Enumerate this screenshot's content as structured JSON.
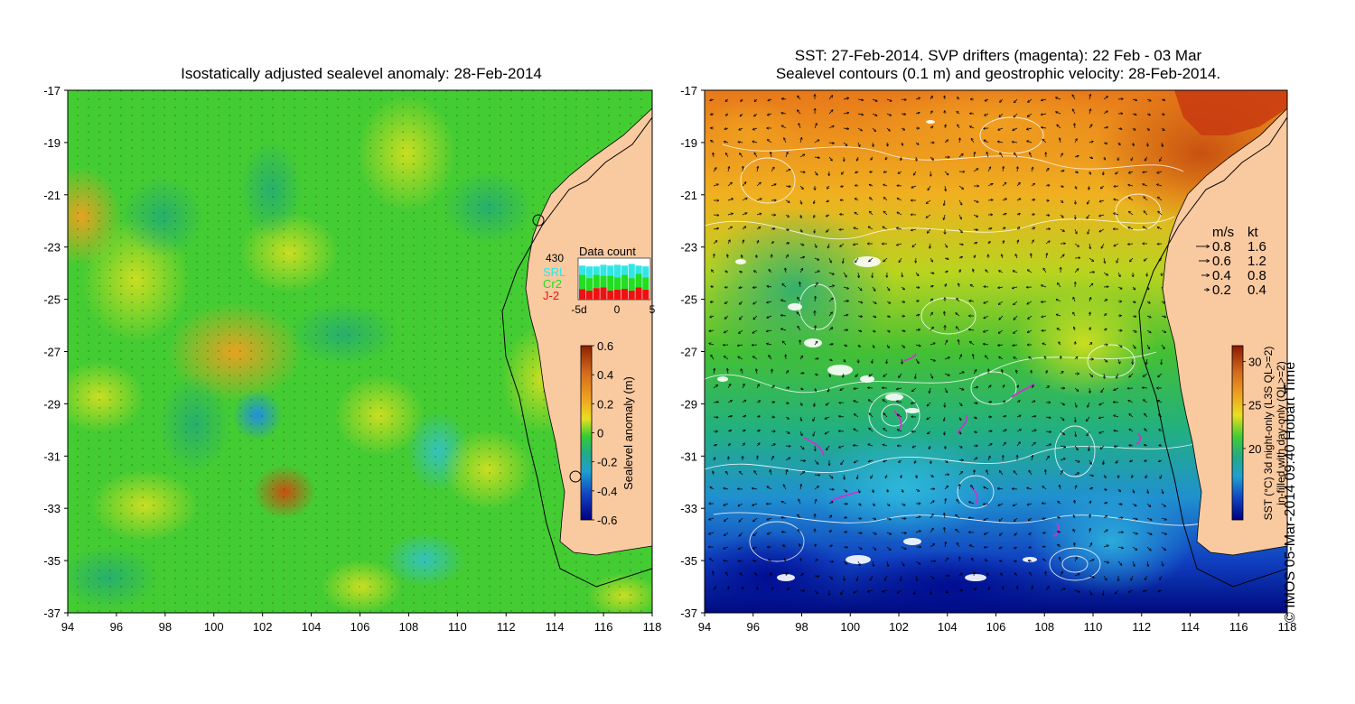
{
  "left_map": {
    "title": "Isostatically adjusted sealevel anomaly: 28-Feb-2014",
    "colorbar": {
      "label": "Sealevel anomaly (m)",
      "ticks": [
        "0.6",
        "0.4",
        "0.2",
        "0",
        "-0.2",
        "-0.4",
        "-0.6"
      ],
      "colors": [
        "#8b2200",
        "#d2691e",
        "#f0a020",
        "#e8e020",
        "#33cc33",
        "#22aa88",
        "#20a0d0",
        "#1040c0",
        "#000080"
      ]
    },
    "data_count": {
      "title": "Data count",
      "max_label": "430",
      "legend": [
        {
          "name": "SRL",
          "color": "#33e6e6"
        },
        {
          "name": "Cr2",
          "color": "#22dd22"
        },
        {
          "name": "J-2",
          "color": "#ee1111"
        }
      ],
      "x_ticks": [
        "-5d",
        "0",
        "5"
      ],
      "bars": [
        {
          "srl": 0.22,
          "cr2": 0.35,
          "j2": 0.25
        },
        {
          "srl": 0.28,
          "cr2": 0.3,
          "j2": 0.22
        },
        {
          "srl": 0.2,
          "cr2": 0.32,
          "j2": 0.28
        },
        {
          "srl": 0.26,
          "cr2": 0.28,
          "j2": 0.3
        },
        {
          "srl": 0.24,
          "cr2": 0.36,
          "j2": 0.22
        },
        {
          "srl": 0.3,
          "cr2": 0.3,
          "j2": 0.24
        },
        {
          "srl": 0.22,
          "cr2": 0.34,
          "j2": 0.26
        },
        {
          "srl": 0.34,
          "cr2": 0.3,
          "j2": 0.22
        },
        {
          "srl": 0.2,
          "cr2": 0.32,
          "j2": 0.3
        },
        {
          "srl": 0.26,
          "cr2": 0.3,
          "j2": 0.24
        }
      ]
    }
  },
  "right_map": {
    "title_line1": "SST: 27-Feb-2014. SVP drifters (magenta): 22 Feb - 03 Mar",
    "title_line2": "Sealevel contours (0.1 m) and geostrophic velocity: 28-Feb-2014.",
    "velocity_legend": {
      "header_ms": "m/s",
      "header_kt": "kt",
      "rows": [
        {
          "ms": "0.8",
          "kt": "1.6"
        },
        {
          "ms": "0.6",
          "kt": "1.2"
        },
        {
          "ms": "0.4",
          "kt": "0.8"
        },
        {
          "ms": "0.2",
          "kt": "0.4"
        }
      ]
    },
    "colorbar": {
      "label_line1": "SST (°C) 3d night-only (L3S QL>=2)",
      "label_line2": "in-filled with day-only (QL>=2)",
      "ticks": [
        "30",
        "25",
        "20"
      ],
      "colors": [
        "#8b1a00",
        "#d2691e",
        "#f0a020",
        "#e8e020",
        "#44cc33",
        "#22aa88",
        "#20a0d0",
        "#1040c0",
        "#000080"
      ]
    }
  },
  "axes": {
    "x_ticks": [
      "94",
      "96",
      "98",
      "100",
      "102",
      "104",
      "106",
      "108",
      "110",
      "112",
      "114",
      "116",
      "118"
    ],
    "y_ticks": [
      "-17",
      "-19",
      "-21",
      "-23",
      "-25",
      "-27",
      "-29",
      "-31",
      "-33",
      "-35",
      "-37"
    ]
  },
  "colors": {
    "land": "#f9c9a0",
    "ocean_left": "#44cc33",
    "ocean_right_north": "#e89a20",
    "ocean_right_south": "#1040c0"
  },
  "copyright": "© IMOS 05-Mar-2014 09:40 Hobart Time"
}
